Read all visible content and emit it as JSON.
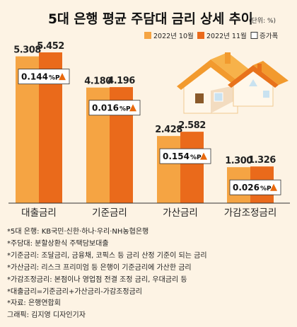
{
  "chart_data": {
    "type": "bar",
    "title": "5대 은행 평균 주담대 금리 상세 추이",
    "unit": "(단위: %)",
    "categories": [
      "대출금리",
      "기준금리",
      "가산금리",
      "가감조정금리"
    ],
    "series": [
      {
        "name": "2022년 10월",
        "values": [
          5.308,
          4.18,
          2.428,
          1.3
        ],
        "labels": [
          "5.308",
          "4.180",
          "2.428",
          "1.300"
        ]
      },
      {
        "name": "2022년 11월",
        "values": [
          5.452,
          4.196,
          2.582,
          1.326
        ],
        "labels": [
          "5.452",
          "4.196",
          "2.582",
          "1.326"
        ]
      }
    ],
    "increase": {
      "name": "증가폭",
      "values": [
        "0.144",
        "0.016",
        "0.154",
        "0.026"
      ],
      "unit": "%P"
    },
    "colors": {
      "oct": "#f5a443",
      "nov": "#ea6a1b",
      "background": "#fdf3e4",
      "arrow": "#e8690f",
      "axis": "#333333"
    }
  },
  "notes": [
    "*5대 은행: KB국민·신한·하나·우리·NH농협은행",
    "*주담대: 분할상환식 주택담보대출",
    "*기준금리: 조달금리, 금융채, 코픽스 등 금리 산정 기준이 되는 금리",
    "*가산금리: 리스크 프리미엄 등 은행이 기준금리에 가산한 금리",
    "*가감조정금리: 본점이나 영업점 전결 조정 금리, 우대금리 등",
    "*대출금리=기준금리+가산금리-가감조정금리",
    "*자료: 은행연합회",
    "그래픽: 김지영 디자인기자"
  ]
}
